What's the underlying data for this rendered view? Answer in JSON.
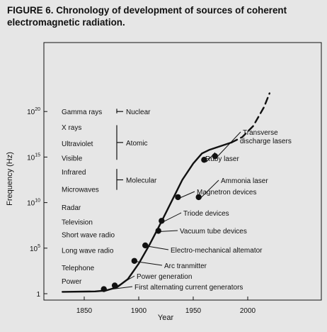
{
  "figure_title": "FIGURE 6. Chronology of development of sources of coherent electromagnetic radiation.",
  "chart_data": {
    "type": "line",
    "title": "FIGURE 6. Chronology of development of sources of coherent electromagnetic radiation.",
    "xlabel": "Year",
    "ylabel": "Frequency (Hz)",
    "x_scale": "linear",
    "y_scale": "log",
    "xlim": [
      1830,
      2060
    ],
    "ylim": [
      1,
      1e+23
    ],
    "x_ticks": [
      1850,
      1900,
      1950,
      2000
    ],
    "x_tick_labels": [
      "1850",
      "1900",
      "1950",
      "2000"
    ],
    "y_ticks": [
      1,
      100000.0,
      10000000000.0,
      1000000000000000.0,
      1e+20
    ],
    "y_tick_labels": [
      {
        "base": "1",
        "exp": ""
      },
      {
        "base": "10",
        "exp": "5"
      },
      {
        "base": "10",
        "exp": "10"
      },
      {
        "base": "10",
        "exp": "15"
      },
      {
        "base": "10",
        "exp": "20"
      }
    ],
    "bands": [
      {
        "label": "Gamma rays",
        "logf": 20.0
      },
      {
        "label": "X rays",
        "logf": 18.3
      },
      {
        "label": "Ultraviolet",
        "logf": 16.5
      },
      {
        "label": "Visible",
        "logf": 14.9
      },
      {
        "label": "Infrared",
        "logf": 13.4
      },
      {
        "label": "Microwaves",
        "logf": 11.5
      },
      {
        "label": "Radar",
        "logf": 9.5
      },
      {
        "label": "Television",
        "logf": 7.9
      },
      {
        "label": "Short wave radio",
        "logf": 6.5
      },
      {
        "label": "Long wave radio",
        "logf": 4.8
      },
      {
        "label": "Telephone",
        "logf": 2.9
      },
      {
        "label": "Power",
        "logf": 1.4
      }
    ],
    "categories_brackets": [
      {
        "label": "Nuclear",
        "from": 19.8,
        "to": 20.3,
        "at": 20.0
      },
      {
        "label": "Atomic",
        "from": 14.7,
        "to": 18.5,
        "at": 16.6
      },
      {
        "label": "Molecular",
        "from": 11.4,
        "to": 13.7,
        "at": 12.5
      }
    ],
    "series": [
      {
        "style": "solid",
        "x": [
          1830,
          1860,
          1870,
          1880,
          1890,
          1900,
          1910,
          1920,
          1930,
          1940,
          1950,
          1958,
          1965,
          1975,
          1985
        ],
        "y": [
          0.2,
          0.25,
          0.35,
          0.7,
          1.6,
          3.3,
          5.4,
          7.7,
          10.1,
          12.5,
          14.3,
          15.4,
          15.8,
          16.2,
          16.6
        ]
      },
      {
        "style": "dashed",
        "x": [
          1985,
          1995,
          2005,
          2015,
          2020
        ],
        "y": [
          16.6,
          17.2,
          18.4,
          20.5,
          22.0
        ]
      }
    ],
    "milestones": [
      {
        "label": "First alternating current generators",
        "year": 1868,
        "logf": 0.5
      },
      {
        "label": "Power generation",
        "year": 1878,
        "logf": 0.9
      },
      {
        "label": "Arc tranmitter",
        "year": 1896,
        "logf": 3.6
      },
      {
        "label": "Electro-mechanical altemator",
        "year": 1906,
        "logf": 5.3
      },
      {
        "label": "Vacuum tube devices",
        "year": 1918,
        "logf": 6.9
      },
      {
        "label": "Triode devices",
        "year": 1921,
        "logf": 8.0
      },
      {
        "label": "Magnetron devices",
        "year": 1936,
        "logf": 10.6
      },
      {
        "label": "Ammonia laser",
        "year": 1955,
        "logf": 10.6
      },
      {
        "label": "Ruby laser",
        "year": 1960,
        "logf": 14.7
      },
      {
        "label": "Transverse discharge lasers",
        "year": 1970,
        "logf": 15.1
      }
    ],
    "grid": false,
    "legend": "none"
  }
}
